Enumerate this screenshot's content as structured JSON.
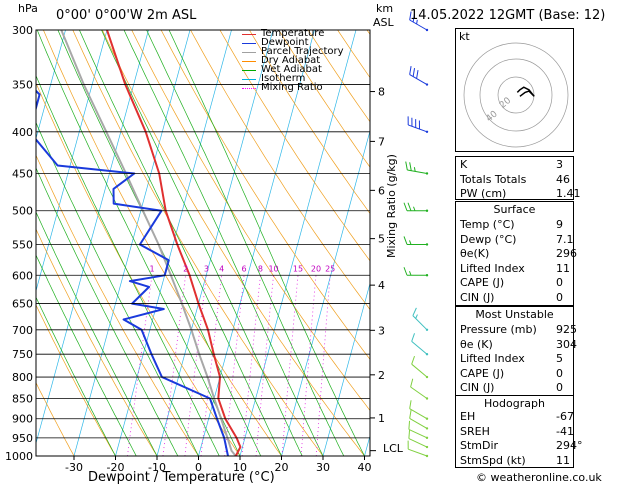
{
  "header": {
    "hpa_unit": "hPa",
    "location": "0°00' 0°00'W 2m ASL",
    "km_unit": "km",
    "asl_unit": "ASL",
    "datetime": "14.05.2022 12GMT (Base: 12)"
  },
  "legend": {
    "items": [
      {
        "label": "Temperature",
        "color": "#e03030"
      },
      {
        "label": "Dewpoint",
        "color": "#1a3adc"
      },
      {
        "label": "Parcel Trajectory",
        "color": "#a0a0a0"
      },
      {
        "label": "Dry Adiabat",
        "color": "#ff8c00"
      },
      {
        "label": "Wet Adiabat",
        "color": "#00aa00"
      },
      {
        "label": "Isotherm",
        "color": "#00b0e0"
      },
      {
        "label": "Mixing Ratio",
        "color": "#ff00ff"
      }
    ]
  },
  "km_ticks": [
    {
      "p": 898,
      "label": "1"
    },
    {
      "p": 795,
      "label": "2"
    },
    {
      "p": 701,
      "label": "3"
    },
    {
      "p": 617,
      "label": "4"
    },
    {
      "p": 541,
      "label": "5"
    },
    {
      "p": 472,
      "label": "6"
    },
    {
      "p": 411,
      "label": "7"
    },
    {
      "p": 357,
      "label": "8"
    }
  ],
  "lcl_label": "LCL",
  "mixing_ratio_axis_label": "Mixing Ratio (g/kg)",
  "chart_data": {
    "type": "skew-t",
    "xlabel": "Dewpoint / Temperature (°C)",
    "ylabel": "hPa",
    "xlim": [
      -40,
      40
    ],
    "ylim": [
      1000,
      300
    ],
    "pressure_ticks": [
      300,
      350,
      400,
      450,
      500,
      550,
      600,
      650,
      700,
      750,
      800,
      850,
      900,
      950,
      1000
    ],
    "temp_ticks": [
      -30,
      -20,
      -10,
      0,
      10,
      20,
      30,
      40
    ],
    "mixing_ratio_labels": [
      "1",
      "2",
      "3",
      "4",
      "6",
      "8",
      "10",
      "15",
      "20",
      "25"
    ],
    "mixing_ratios": [
      1,
      2,
      3,
      4,
      6,
      8,
      10,
      15,
      20,
      25
    ],
    "temperature": [
      {
        "p": 1000,
        "t": 9
      },
      {
        "p": 975,
        "t": 9.5
      },
      {
        "p": 950,
        "t": 8
      },
      {
        "p": 900,
        "t": 4
      },
      {
        "p": 850,
        "t": 1
      },
      {
        "p": 800,
        "t": 0
      },
      {
        "p": 750,
        "t": -3
      },
      {
        "p": 700,
        "t": -6
      },
      {
        "p": 650,
        "t": -10
      },
      {
        "p": 600,
        "t": -14
      },
      {
        "p": 550,
        "t": -19
      },
      {
        "p": 500,
        "t": -24
      },
      {
        "p": 450,
        "t": -28
      },
      {
        "p": 400,
        "t": -34
      },
      {
        "p": 350,
        "t": -42
      },
      {
        "p": 300,
        "t": -50
      }
    ],
    "dewpoint": [
      {
        "p": 1000,
        "t": 7.1
      },
      {
        "p": 950,
        "t": 5
      },
      {
        "p": 900,
        "t": 2
      },
      {
        "p": 850,
        "t": -1
      },
      {
        "p": 800,
        "t": -14
      },
      {
        "p": 750,
        "t": -18
      },
      {
        "p": 700,
        "t": -22
      },
      {
        "p": 680,
        "t": -27
      },
      {
        "p": 660,
        "t": -18
      },
      {
        "p": 650,
        "t": -26
      },
      {
        "p": 620,
        "t": -23
      },
      {
        "p": 610,
        "t": -28
      },
      {
        "p": 600,
        "t": -20
      },
      {
        "p": 575,
        "t": -20
      },
      {
        "p": 550,
        "t": -28
      },
      {
        "p": 500,
        "t": -25
      },
      {
        "p": 490,
        "t": -37
      },
      {
        "p": 470,
        "t": -38
      },
      {
        "p": 450,
        "t": -34
      },
      {
        "p": 440,
        "t": -53
      },
      {
        "p": 400,
        "t": -62
      },
      {
        "p": 360,
        "t": -62
      },
      {
        "p": 300,
        "t": -82
      }
    ],
    "parcel": [
      {
        "p": 1000,
        "t": 9
      },
      {
        "p": 985,
        "t": 7.6
      },
      {
        "p": 950,
        "t": 5.8
      },
      {
        "p": 900,
        "t": 3
      },
      {
        "p": 850,
        "t": 0
      },
      {
        "p": 800,
        "t": -3
      },
      {
        "p": 750,
        "t": -6.5
      },
      {
        "p": 700,
        "t": -10
      },
      {
        "p": 650,
        "t": -14
      },
      {
        "p": 600,
        "t": -18.5
      },
      {
        "p": 550,
        "t": -23.5
      },
      {
        "p": 500,
        "t": -29.5
      },
      {
        "p": 450,
        "t": -36
      },
      {
        "p": 400,
        "t": -43.5
      },
      {
        "p": 350,
        "t": -52
      },
      {
        "p": 300,
        "t": -61
      }
    ],
    "lcl_pressure": 985,
    "wind_barbs": [
      {
        "p": 1000,
        "dir": 290,
        "spd": 10
      },
      {
        "p": 975,
        "dir": 295,
        "spd": 10
      },
      {
        "p": 950,
        "dir": 295,
        "spd": 10
      },
      {
        "p": 925,
        "dir": 300,
        "spd": 10
      },
      {
        "p": 900,
        "dir": 300,
        "spd": 10
      },
      {
        "p": 850,
        "dir": 305,
        "spd": 10
      },
      {
        "p": 800,
        "dir": 310,
        "spd": 10
      },
      {
        "p": 750,
        "dir": 310,
        "spd": 10
      },
      {
        "p": 700,
        "dir": 315,
        "spd": 15
      },
      {
        "p": 600,
        "dir": 270,
        "spd": 15
      },
      {
        "p": 550,
        "dir": 270,
        "spd": 15
      },
      {
        "p": 500,
        "dir": 270,
        "spd": 25
      },
      {
        "p": 450,
        "dir": 280,
        "spd": 25
      },
      {
        "p": 400,
        "dir": 290,
        "spd": 40
      },
      {
        "p": 350,
        "dir": 300,
        "spd": 30
      },
      {
        "p": 300,
        "dir": 300,
        "spd": 25
      }
    ]
  },
  "hodograph": {
    "unit_label": "kt",
    "ring_labels": [
      "20",
      "40"
    ],
    "points": [
      {
        "u": 3,
        "v": -1
      },
      {
        "u": 7,
        "v": 2
      },
      {
        "u": 10,
        "v": 3
      },
      {
        "u": 12,
        "v": 1
      },
      {
        "u": 14,
        "v": -1
      },
      {
        "u": 10,
        "v": 4
      },
      {
        "u": 6,
        "v": 6
      },
      {
        "u": 3,
        "v": 4
      },
      {
        "u": 1,
        "v": 2
      }
    ]
  },
  "indices": {
    "rows": [
      {
        "label": "K",
        "value": "3"
      },
      {
        "label": "Totals Totals",
        "value": "46"
      },
      {
        "label": "PW (cm)",
        "value": "1.41"
      }
    ]
  },
  "surface": {
    "title": "Surface",
    "rows": [
      {
        "label": "Temp (°C)",
        "value": "9"
      },
      {
        "label": "Dewp (°C)",
        "value": "7.1"
      },
      {
        "label": "θe(K)",
        "value": "296"
      },
      {
        "label": "Lifted Index",
        "value": "11"
      },
      {
        "label": "CAPE (J)",
        "value": "0"
      },
      {
        "label": "CIN (J)",
        "value": "0"
      }
    ]
  },
  "most_unstable": {
    "title": "Most Unstable",
    "rows": [
      {
        "label": "Pressure (mb)",
        "value": "925"
      },
      {
        "label": "θe (K)",
        "value": "304"
      },
      {
        "label": "Lifted Index",
        "value": "5"
      },
      {
        "label": "CAPE (J)",
        "value": "0"
      },
      {
        "label": "CIN (J)",
        "value": "0"
      }
    ]
  },
  "hodograph_table": {
    "title": "Hodograph",
    "rows": [
      {
        "label": "EH",
        "value": "-67"
      },
      {
        "label": "SREH",
        "value": "-41"
      },
      {
        "label": "StmDir",
        "value": "294°"
      },
      {
        "label": "StmSpd (kt)",
        "value": "11"
      }
    ]
  },
  "footer": {
    "copyright": "© weatheronline.co.uk"
  }
}
